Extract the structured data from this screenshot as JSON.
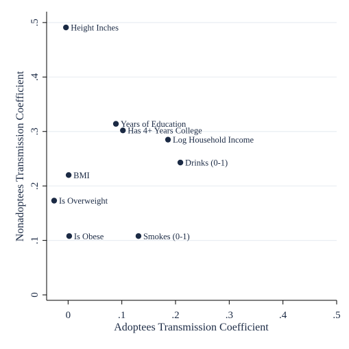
{
  "chart_data": {
    "type": "scatter",
    "title": "",
    "xlabel": "Adoptees Transmission Coefficient",
    "ylabel": "Nonadoptees Transmission Coefficient",
    "xlim": [
      -0.04,
      0.5
    ],
    "ylim": [
      -0.01,
      0.52
    ],
    "xticks": [
      0,
      0.1,
      0.2,
      0.3,
      0.4,
      0.5
    ],
    "xtick_labels": [
      "0",
      ".1",
      ".2",
      ".3",
      ".4",
      ".5"
    ],
    "yticks": [
      0,
      0.1,
      0.2,
      0.3,
      0.4,
      0.5
    ],
    "ytick_labels": [
      "0",
      ".1",
      ".2",
      ".3",
      ".4",
      ".5"
    ],
    "grid": "horizontal",
    "legend": "none",
    "colors": {
      "background": "#ffffff",
      "plot_background": "#ffffff",
      "grid": "#e9eef3",
      "axis": "#000000",
      "marker": "#1b2a44",
      "text": "#1b2a44"
    },
    "points": [
      {
        "label": "Height Inches",
        "x": -0.004,
        "y": 0.491
      },
      {
        "label": "Years of Education",
        "x": 0.089,
        "y": 0.314
      },
      {
        "label": "Has 4+ Years College",
        "x": 0.102,
        "y": 0.302
      },
      {
        "label": "Log Household Income",
        "x": 0.186,
        "y": 0.285
      },
      {
        "label": "Drinks (0-1)",
        "x": 0.209,
        "y": 0.243
      },
      {
        "label": "BMI",
        "x": 0.001,
        "y": 0.22
      },
      {
        "label": "Is Overweight",
        "x": -0.026,
        "y": 0.173
      },
      {
        "label": "Is Obese",
        "x": 0.002,
        "y": 0.108
      },
      {
        "label": "Smokes (0-1)",
        "x": 0.131,
        "y": 0.108
      }
    ]
  }
}
